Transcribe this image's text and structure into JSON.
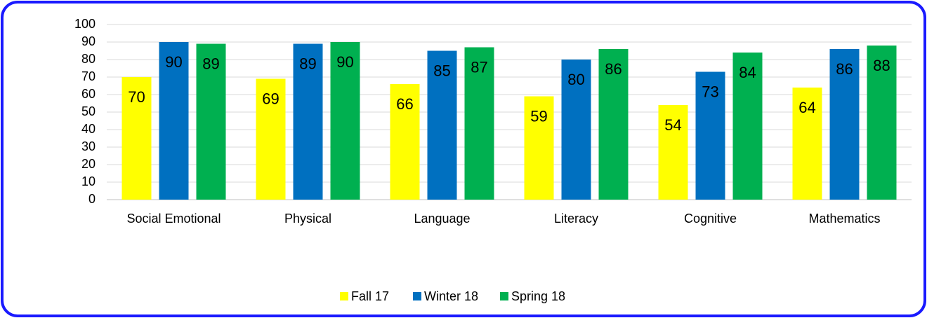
{
  "chart_data": {
    "type": "bar",
    "categories": [
      "Social Emotional",
      "Physical",
      "Language",
      "Literacy",
      "Cognitive",
      "Mathematics"
    ],
    "series": [
      {
        "name": "Fall 17",
        "color": "#ffff00",
        "values": [
          70,
          69,
          66,
          59,
          54,
          64
        ]
      },
      {
        "name": "Winter 18",
        "color": "#0070c0",
        "values": [
          90,
          89,
          85,
          80,
          73,
          86
        ]
      },
      {
        "name": "Spring 18",
        "color": "#00b050",
        "values": [
          89,
          90,
          87,
          86,
          84,
          88
        ]
      }
    ],
    "ylim": [
      0,
      100
    ],
    "yticks": [
      0,
      10,
      20,
      30,
      40,
      50,
      60,
      70,
      80,
      90,
      100
    ],
    "grid": true,
    "legend": "bottom"
  }
}
